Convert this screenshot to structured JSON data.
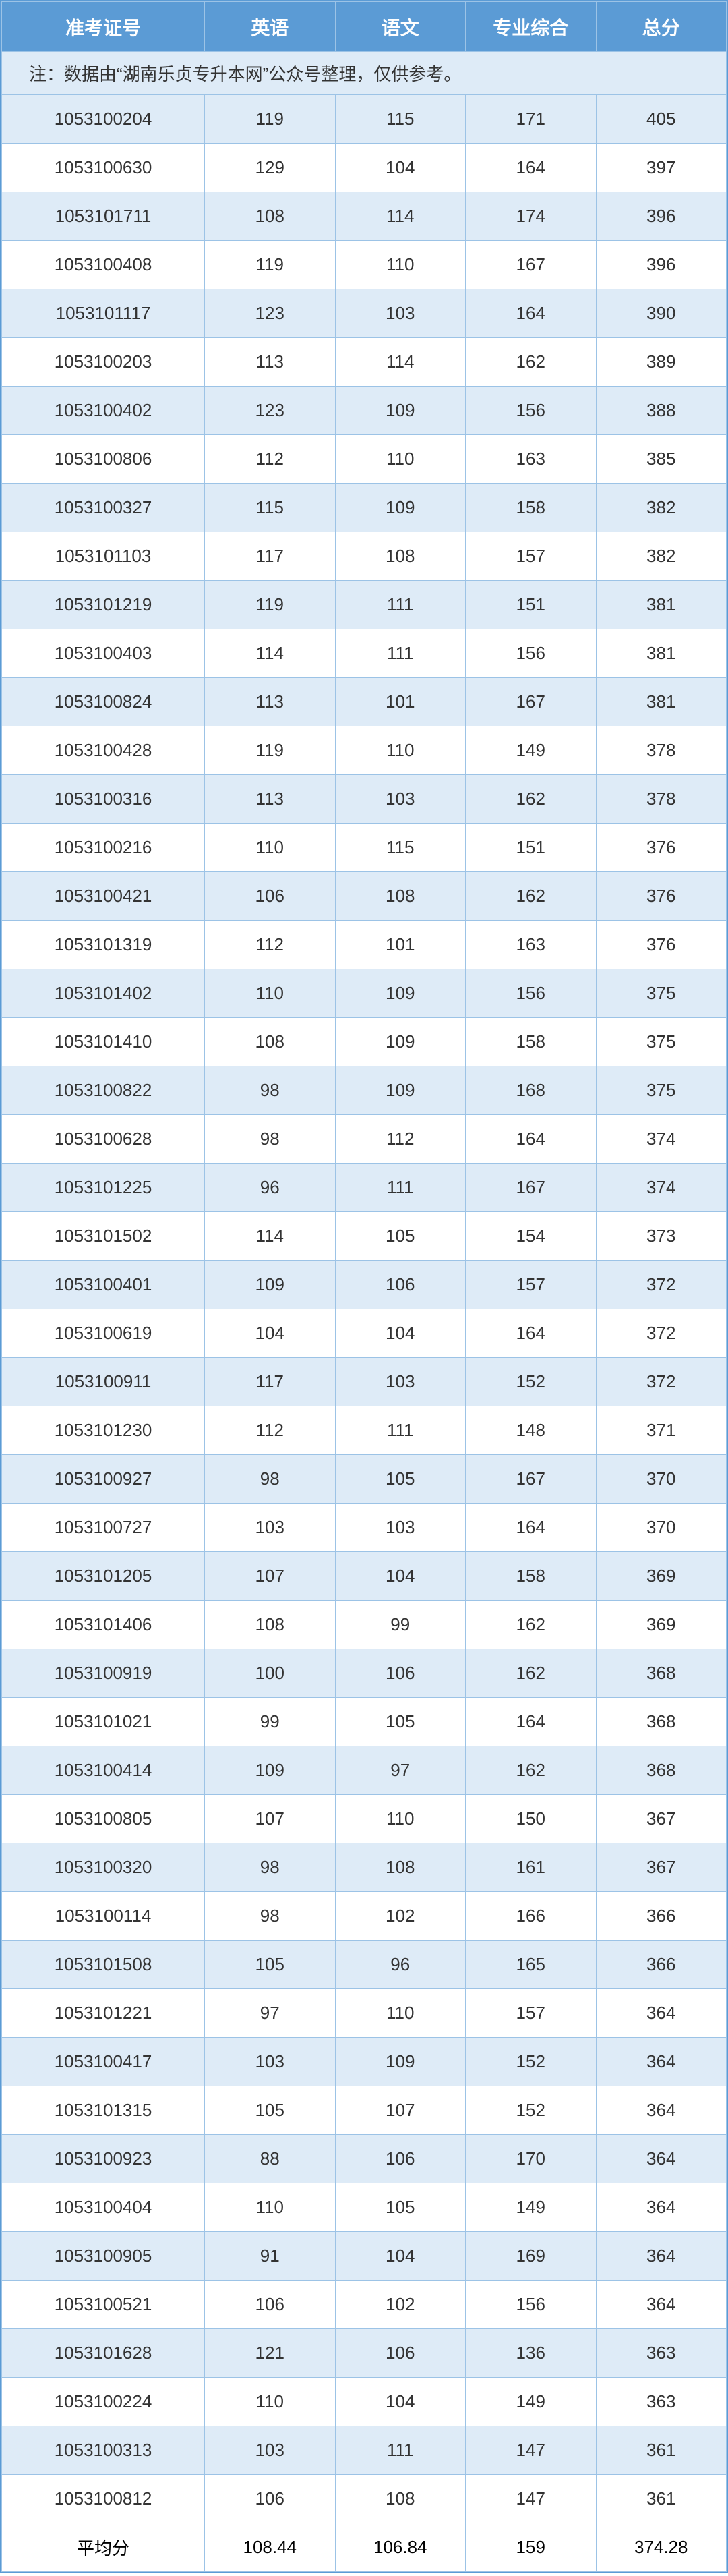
{
  "table": {
    "headers": [
      "准考证号",
      "英语",
      "语文",
      "专业综合",
      "总分"
    ],
    "note": "注：数据由“湖南乐贞专升本网”公众号整理，仅供参考。",
    "colors": {
      "header_bg": "#5b9bd5",
      "header_text": "#ffffff",
      "row_odd_bg": "#deebf7",
      "row_even_bg": "#ffffff",
      "border": "#9cc3e6",
      "text": "#333333"
    },
    "rows": [
      [
        "1053100204",
        "119",
        "115",
        "171",
        "405"
      ],
      [
        "1053100630",
        "129",
        "104",
        "164",
        "397"
      ],
      [
        "1053101711",
        "108",
        "114",
        "174",
        "396"
      ],
      [
        "1053100408",
        "119",
        "110",
        "167",
        "396"
      ],
      [
        "1053101117",
        "123",
        "103",
        "164",
        "390"
      ],
      [
        "1053100203",
        "113",
        "114",
        "162",
        "389"
      ],
      [
        "1053100402",
        "123",
        "109",
        "156",
        "388"
      ],
      [
        "1053100806",
        "112",
        "110",
        "163",
        "385"
      ],
      [
        "1053100327",
        "115",
        "109",
        "158",
        "382"
      ],
      [
        "1053101103",
        "117",
        "108",
        "157",
        "382"
      ],
      [
        "1053101219",
        "119",
        "111",
        "151",
        "381"
      ],
      [
        "1053100403",
        "114",
        "111",
        "156",
        "381"
      ],
      [
        "1053100824",
        "113",
        "101",
        "167",
        "381"
      ],
      [
        "1053100428",
        "119",
        "110",
        "149",
        "378"
      ],
      [
        "1053100316",
        "113",
        "103",
        "162",
        "378"
      ],
      [
        "1053100216",
        "110",
        "115",
        "151",
        "376"
      ],
      [
        "1053100421",
        "106",
        "108",
        "162",
        "376"
      ],
      [
        "1053101319",
        "112",
        "101",
        "163",
        "376"
      ],
      [
        "1053101402",
        "110",
        "109",
        "156",
        "375"
      ],
      [
        "1053101410",
        "108",
        "109",
        "158",
        "375"
      ],
      [
        "1053100822",
        "98",
        "109",
        "168",
        "375"
      ],
      [
        "1053100628",
        "98",
        "112",
        "164",
        "374"
      ],
      [
        "1053101225",
        "96",
        "111",
        "167",
        "374"
      ],
      [
        "1053101502",
        "114",
        "105",
        "154",
        "373"
      ],
      [
        "1053100401",
        "109",
        "106",
        "157",
        "372"
      ],
      [
        "1053100619",
        "104",
        "104",
        "164",
        "372"
      ],
      [
        "1053100911",
        "117",
        "103",
        "152",
        "372"
      ],
      [
        "1053101230",
        "112",
        "111",
        "148",
        "371"
      ],
      [
        "1053100927",
        "98",
        "105",
        "167",
        "370"
      ],
      [
        "1053100727",
        "103",
        "103",
        "164",
        "370"
      ],
      [
        "1053101205",
        "107",
        "104",
        "158",
        "369"
      ],
      [
        "1053101406",
        "108",
        "99",
        "162",
        "369"
      ],
      [
        "1053100919",
        "100",
        "106",
        "162",
        "368"
      ],
      [
        "1053101021",
        "99",
        "105",
        "164",
        "368"
      ],
      [
        "1053100414",
        "109",
        "97",
        "162",
        "368"
      ],
      [
        "1053100805",
        "107",
        "110",
        "150",
        "367"
      ],
      [
        "1053100320",
        "98",
        "108",
        "161",
        "367"
      ],
      [
        "1053100114",
        "98",
        "102",
        "166",
        "366"
      ],
      [
        "1053101508",
        "105",
        "96",
        "165",
        "366"
      ],
      [
        "1053101221",
        "97",
        "110",
        "157",
        "364"
      ],
      [
        "1053100417",
        "103",
        "109",
        "152",
        "364"
      ],
      [
        "1053101315",
        "105",
        "107",
        "152",
        "364"
      ],
      [
        "1053100923",
        "88",
        "106",
        "170",
        "364"
      ],
      [
        "1053100404",
        "110",
        "105",
        "149",
        "364"
      ],
      [
        "1053100905",
        "91",
        "104",
        "169",
        "364"
      ],
      [
        "1053100521",
        "106",
        "102",
        "156",
        "364"
      ],
      [
        "1053101628",
        "121",
        "106",
        "136",
        "363"
      ],
      [
        "1053100224",
        "110",
        "104",
        "149",
        "363"
      ],
      [
        "1053100313",
        "103",
        "111",
        "147",
        "361"
      ],
      [
        "1053100812",
        "106",
        "108",
        "147",
        "361"
      ]
    ],
    "footer": [
      "平均分",
      "108.44",
      "106.84",
      "159",
      "374.28"
    ]
  }
}
